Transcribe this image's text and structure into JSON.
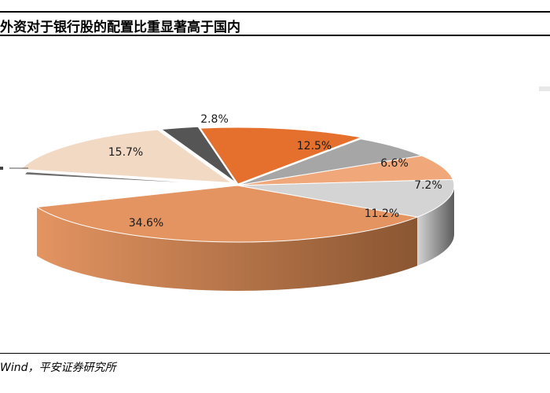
{
  "title": "外资对于银行股的配置比重显著高于国内",
  "source": "Wind，平安证券研究所",
  "chart_data": {
    "type": "pie",
    "style": "3d-exploded",
    "title": "外资对于银行股的配置比重显著高于国内",
    "slices": [
      {
        "label": "12.5%",
        "value": 12.5,
        "color": "#e56f2c",
        "side": "#a84c18"
      },
      {
        "label": "6.6%",
        "value": 6.6,
        "color": "#a6a6a6",
        "side": "#6e6e6e"
      },
      {
        "label": "7.2%",
        "value": 7.2,
        "color": "#f0a87a",
        "side": "#c07a4f"
      },
      {
        "label": "11.2%",
        "value": 11.2,
        "color": "#d4d4d4",
        "side": "#5c5c5c"
      },
      {
        "label": "34.6%",
        "value": 34.6,
        "color": "#e39461",
        "side": "#8a5632"
      },
      {
        "label": "",
        "value": 9.4,
        "color": "#ffffff",
        "side": "#ffffff",
        "hidden": true
      },
      {
        "label": "",
        "value": 0.8,
        "color": "#6d6d6d",
        "side": "#4a4a4a"
      },
      {
        "label": "15.7%",
        "value": 15.7,
        "color": "#f2d9c4",
        "side": "#c9a98c"
      },
      {
        "label": "2.8%",
        "value": 2.8,
        "color": "#555555",
        "side": "#3a3a3a"
      }
    ]
  }
}
